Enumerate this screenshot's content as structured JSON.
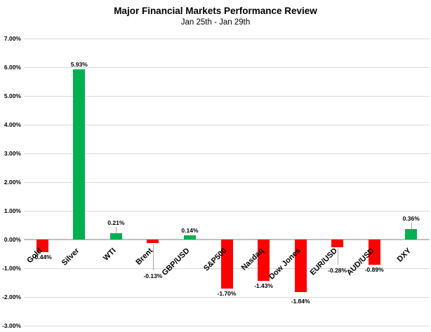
{
  "header": {
    "title": "Major Financial Markets Performance Review",
    "subtitle": "Jan 25th - Jan 29th"
  },
  "colors": {
    "positive_bar": "#00B050",
    "negative_bar": "#FF0000",
    "gridline": "#D9D9D9",
    "zero_axis": "#C0C0C0",
    "leader_line": "#A6A6A6",
    "text": "#000000",
    "background": "#FFFFFF"
  },
  "chart_data": {
    "type": "bar",
    "title": "Major Financial Markets Performance Review",
    "subtitle": "Jan 25th - Jan 29th",
    "categories": [
      "Gold",
      "Silver",
      "WTI",
      "Brent",
      "GBP/USD",
      "S&P500",
      "Nasdaq",
      "Dow Jones",
      "EUR/USD",
      "AUD/USD",
      "DXY"
    ],
    "values": [
      -0.44,
      5.93,
      0.21,
      -0.13,
      0.14,
      -1.7,
      -1.43,
      -1.84,
      -0.28,
      -0.89,
      0.36
    ],
    "value_labels": [
      "-0.44%",
      "5.93%",
      "0.21%",
      "-0.13%",
      "0.14%",
      "-1.70%",
      "-1.43%",
      "-1.84%",
      "-0.28%",
      "-0.89%",
      "0.36%"
    ],
    "xlabel": "",
    "ylabel": "",
    "ylim": [
      -3,
      7
    ],
    "ytick_step": 1,
    "ytick_labels": [
      "7.00%",
      "6.00%",
      "5.00%",
      "4.00%",
      "3.00%",
      "2.00%",
      "1.00%",
      "0.00%",
      "-1.00%",
      "-2.00%",
      "-3.00%"
    ],
    "grid": true,
    "legend": "none",
    "color_rule": "green if positive, red if negative",
    "label_offsets": {
      "WTI": 8,
      "Brent": 40,
      "EUR/USD": 26,
      "DXY": 8,
      "Dow Jones": 6
    },
    "leader_lines": [
      "WTI",
      "Brent",
      "EUR/USD",
      "DXY"
    ]
  }
}
